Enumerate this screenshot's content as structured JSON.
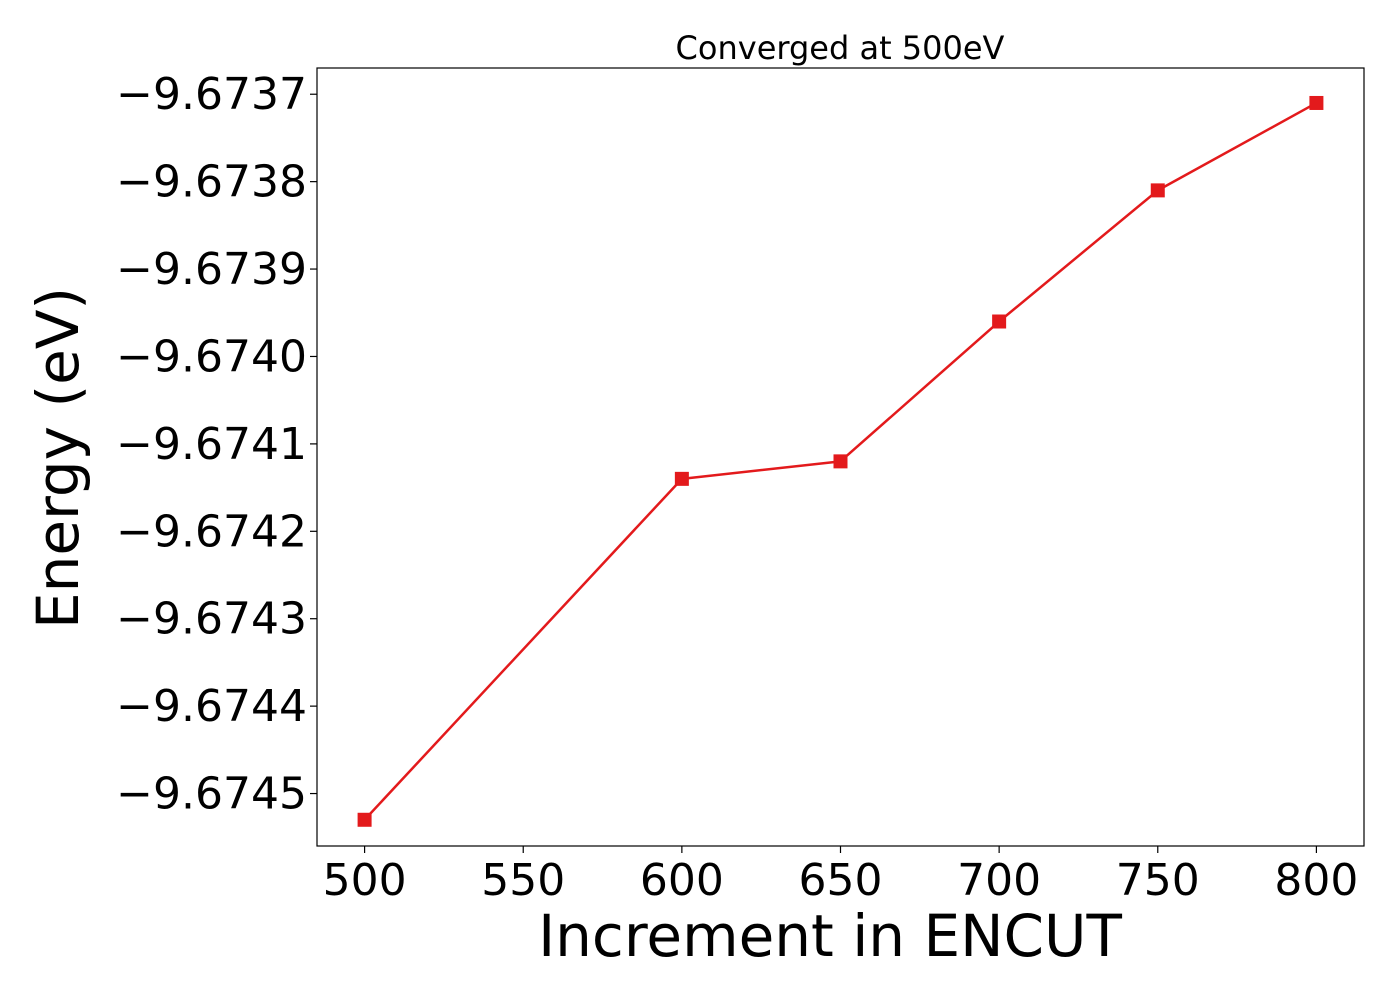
{
  "chart_data": {
    "type": "line",
    "title": "Converged at 500eV",
    "xlabel": "Increment in ENCUT",
    "ylabel": "Energy (eV)",
    "x": [
      500,
      600,
      650,
      700,
      750,
      800
    ],
    "series": [
      {
        "values": [
          -9.67453,
          -9.67414,
          -9.67412,
          -9.67396,
          -9.67381,
          -9.67371
        ],
        "color": "#e31a1c",
        "marker": "square"
      }
    ],
    "xticks": [
      500,
      550,
      600,
      650,
      700,
      750,
      800
    ],
    "xtick_labels": [
      "500",
      "550",
      "600",
      "650",
      "700",
      "750",
      "800"
    ],
    "yticks": [
      -9.6745,
      -9.6744,
      -9.6743,
      -9.6742,
      -9.6741,
      -9.674,
      -9.6739,
      -9.6738,
      -9.6737
    ],
    "ytick_labels": [
      "−9.6745",
      "−9.6744",
      "−9.6743",
      "−9.6742",
      "−9.6741",
      "−9.6740",
      "−9.6739",
      "−9.6738",
      "−9.6737"
    ],
    "xlim": [
      485,
      815
    ],
    "ylim": [
      -9.67456,
      -9.67367
    ],
    "grid": false,
    "legend": "none"
  }
}
